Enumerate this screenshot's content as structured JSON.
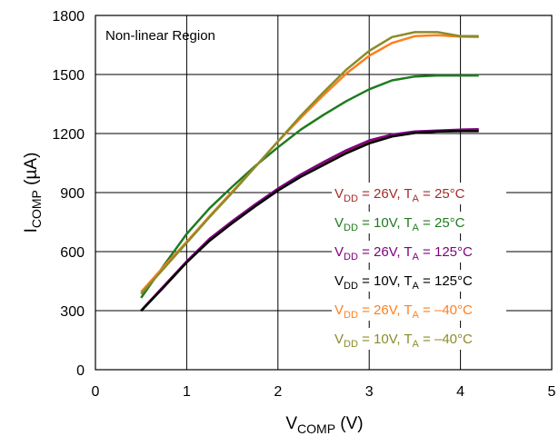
{
  "chart_data": {
    "type": "line",
    "xlabel": {
      "main": "V",
      "sub": "COMP",
      "unit": " (V)"
    },
    "ylabel": {
      "main": "I",
      "sub": "COMP",
      "unit": " (µA)"
    },
    "xlim": [
      0,
      5
    ],
    "ylim": [
      0,
      1800
    ],
    "x_ticks": [
      0,
      1,
      2,
      3,
      4,
      5
    ],
    "y_ticks": [
      0,
      300,
      600,
      900,
      1200,
      1500,
      1800
    ],
    "x_tick_labels": [
      "0",
      "1",
      "2",
      "3",
      "4",
      "5"
    ],
    "y_tick_labels": [
      "0",
      "300",
      "600",
      "900",
      "1200",
      "1500",
      "1800"
    ],
    "grid": true,
    "legend_placement": "right",
    "annotation": "Non-linear Region",
    "series": [
      {
        "name": "VDD = 26V, TA = 25°C",
        "label_parts": [
          "V",
          "DD",
          " = 26V, T",
          "A",
          " = 25°C"
        ],
        "color": "#A52A2A",
        "x": [
          0.5,
          0.75,
          1.0,
          1.25,
          1.5,
          1.75,
          2.0,
          2.25,
          2.5,
          2.75,
          3.0,
          3.25,
          3.5,
          3.75,
          4.0,
          4.2
        ],
        "y": [
          300,
          425,
          550,
          660,
          750,
          835,
          915,
          985,
          1045,
          1105,
          1155,
          1190,
          1208,
          1213,
          1215,
          1215
        ]
      },
      {
        "name": "VDD = 10V, TA = 25°C",
        "label_parts": [
          "V",
          "DD",
          " = 10V, T",
          "A",
          " = 25°C"
        ],
        "color": "#1E7B1E",
        "x": [
          0.5,
          0.75,
          1.0,
          1.25,
          1.5,
          1.75,
          2.0,
          2.25,
          2.5,
          2.75,
          3.0,
          3.25,
          3.5,
          3.75,
          4.0,
          4.2
        ],
        "y": [
          365,
          530,
          690,
          820,
          930,
          1035,
          1130,
          1220,
          1295,
          1365,
          1425,
          1470,
          1490,
          1495,
          1495,
          1495
        ]
      },
      {
        "name": "VDD = 26V, TA = 125°C",
        "label_parts": [
          "V",
          "DD",
          " = 26V, T",
          "A",
          " = 125°C"
        ],
        "color": "#800080",
        "x": [
          0.5,
          0.75,
          1.0,
          1.25,
          1.5,
          1.75,
          2.0,
          2.25,
          2.5,
          2.75,
          3.0,
          3.25,
          3.5,
          3.75,
          4.0,
          4.2
        ],
        "y": [
          300,
          425,
          550,
          665,
          755,
          840,
          920,
          992,
          1055,
          1115,
          1165,
          1195,
          1210,
          1215,
          1220,
          1222
        ]
      },
      {
        "name": "VDD = 10V, TA = 125°C",
        "label_parts": [
          "V",
          "DD",
          " = 10V, T",
          "A",
          " = 125°C"
        ],
        "color": "#000000",
        "x": [
          0.5,
          0.75,
          1.0,
          1.25,
          1.5,
          1.75,
          2.0,
          2.25,
          2.5,
          2.75,
          3.0,
          3.25,
          3.5,
          3.75,
          4.0,
          4.2
        ],
        "y": [
          298,
          420,
          545,
          655,
          745,
          830,
          910,
          980,
          1040,
          1100,
          1150,
          1185,
          1203,
          1210,
          1212,
          1212
        ]
      },
      {
        "name": "VDD = 26V, TA = –40°C",
        "label_parts": [
          "V",
          "DD",
          " = 26V, T",
          "A",
          " = –40°C"
        ],
        "color": "#FF7F1E",
        "x": [
          0.5,
          0.75,
          1.0,
          1.25,
          1.5,
          1.75,
          2.0,
          2.25,
          2.5,
          2.75,
          3.0,
          3.25,
          3.5,
          3.75,
          4.0,
          4.2
        ],
        "y": [
          395,
          525,
          650,
          780,
          905,
          1030,
          1160,
          1280,
          1395,
          1505,
          1595,
          1660,
          1695,
          1700,
          1692,
          1690
        ]
      },
      {
        "name": "VDD = 10V, TA = –40°C",
        "label_parts": [
          "V",
          "DD",
          " = 10V, T",
          "A",
          " = –40°C"
        ],
        "color": "#8B8B2A",
        "x": [
          0.5,
          0.75,
          1.0,
          1.25,
          1.5,
          1.75,
          2.0,
          2.25,
          2.5,
          2.75,
          3.0,
          3.25,
          3.5,
          3.75,
          4.0,
          4.2
        ],
        "y": [
          385,
          515,
          645,
          775,
          900,
          1030,
          1160,
          1290,
          1410,
          1525,
          1620,
          1690,
          1715,
          1715,
          1695,
          1695
        ]
      }
    ]
  }
}
